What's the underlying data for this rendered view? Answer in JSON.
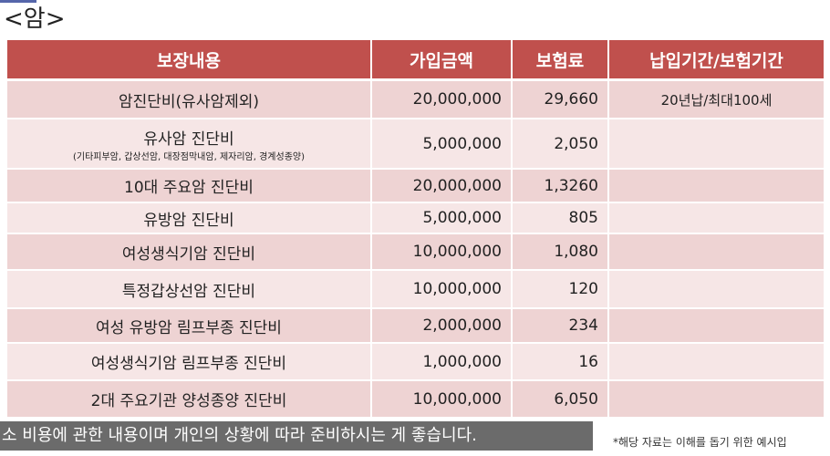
{
  "title": "<암>",
  "table": {
    "header": [
      "보장내용",
      "가입금액",
      "보험료",
      "납입기간/보험기간"
    ],
    "rows": [
      {
        "coverage": "암진단비(유사암제외)",
        "amount": "20,000,000",
        "premium": "29,660",
        "period": "20년납/최대100세"
      },
      {
        "coverage": "유사암 진단비",
        "note": "(기타피부암, 갑상선암, 대장점막내암, 제자리암, 경계성종양)",
        "amount": "5,000,000",
        "premium": "2,050"
      },
      {
        "coverage": "10대 주요암 진단비",
        "amount": "20,000,000",
        "premium": "1,3260"
      },
      {
        "coverage": "유방암 진단비",
        "amount": "5,000,000",
        "premium": "805"
      },
      {
        "coverage": "여성생식기암 진단비",
        "amount": "10,000,000",
        "premium": "1,080"
      },
      {
        "coverage": "특정갑상선암 진단비",
        "amount": "10,000,000",
        "premium": "120"
      },
      {
        "coverage": "여성 유방암 림프부종 진단비",
        "amount": "2,000,000",
        "premium": "234"
      },
      {
        "coverage": "여성생식기암 림프부종 진단비",
        "amount": "1,000,000",
        "premium": "16"
      },
      {
        "coverage": "2대 주요기관 양성종양 진단비",
        "amount": "10,000,000",
        "premium": "6,050"
      }
    ]
  },
  "footer": {
    "banner": "소 비용에 관한 내용이며 개인의 상황에 따라 준비하시는 게 좋습니다.",
    "note": "*해당 자료는 이해를 돕기 위한 예시입"
  }
}
